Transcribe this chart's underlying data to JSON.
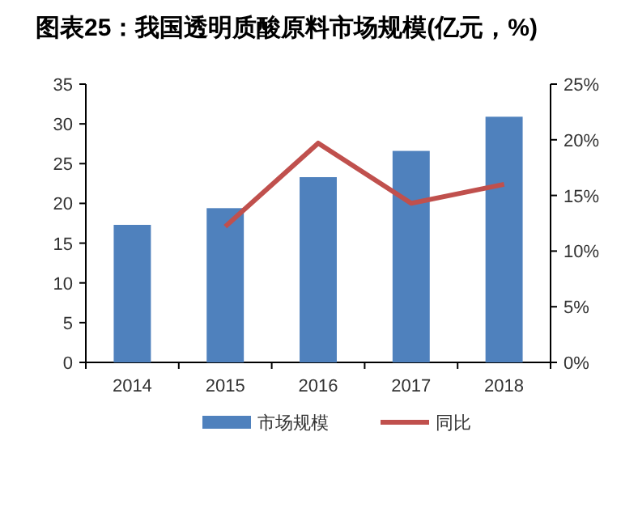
{
  "chart_data": {
    "type": "bar",
    "title": "图表25：我国透明质酸原料市场规模(亿元，%)",
    "categories": [
      "2014",
      "2015",
      "2016",
      "2017",
      "2018"
    ],
    "series": [
      {
        "name": "市场规模",
        "color": "#4f81bd",
        "values": [
          17.3,
          19.4,
          23.3,
          26.6,
          30.9
        ]
      },
      {
        "name": "同比",
        "type": "line",
        "axis": "y2",
        "color": "#c0504d",
        "values": [
          null,
          12.2,
          19.7,
          14.3,
          16.0
        ]
      }
    ],
    "ylim": [
      0,
      35
    ],
    "yticks": [
      0,
      5,
      10,
      15,
      20,
      25,
      30,
      35
    ],
    "y2lim": [
      0,
      25
    ],
    "y2ticks": [
      {
        "value": 0,
        "label": "0%"
      },
      {
        "value": 5,
        "label": "5%"
      },
      {
        "value": 10,
        "label": "10%"
      },
      {
        "value": 15,
        "label": "15%"
      },
      {
        "value": 20,
        "label": "20%"
      },
      {
        "value": 25,
        "label": "25%"
      }
    ],
    "legend": "bottom",
    "grid": false
  }
}
